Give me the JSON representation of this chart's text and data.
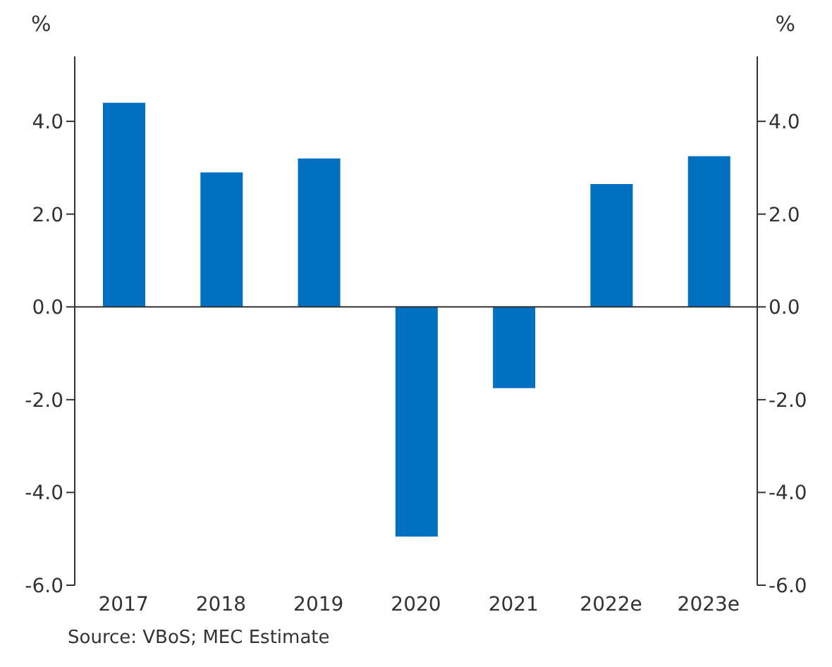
{
  "chart_data": {
    "type": "bar",
    "categories": [
      "2017",
      "2018",
      "2019",
      "2020",
      "2021",
      "2022e",
      "2023e"
    ],
    "values": [
      4.4,
      2.9,
      3.2,
      -4.95,
      -1.75,
      2.65,
      3.25
    ],
    "color": "#0070c0",
    "ylabel": "%",
    "y2label": "%",
    "ylim": [
      -6,
      5.4
    ],
    "yticks": [
      {
        "value": -6,
        "label": "-6.0"
      },
      {
        "value": -4,
        "label": "-4.0"
      },
      {
        "value": -2,
        "label": "-2.0"
      },
      {
        "value": 0,
        "label": "0.0"
      },
      {
        "value": 2,
        "label": "2.0"
      },
      {
        "value": 4,
        "label": "4.0"
      }
    ],
    "y2lim": [
      -6,
      5.4
    ],
    "y2ticks": [
      {
        "value": -6,
        "label": "-6.0"
      },
      {
        "value": -4,
        "label": "-4.0"
      },
      {
        "value": -2,
        "label": "-2.0"
      },
      {
        "value": 0,
        "label": "0.0"
      },
      {
        "value": 2,
        "label": "2.0"
      },
      {
        "value": 4,
        "label": "4.0"
      }
    ],
    "annotations": [
      "Source: VBoS; MEC Estimate"
    ],
    "ref_lines": [
      {
        "axis": "y",
        "value": 0,
        "color": "#333333"
      }
    ],
    "legend": false
  }
}
